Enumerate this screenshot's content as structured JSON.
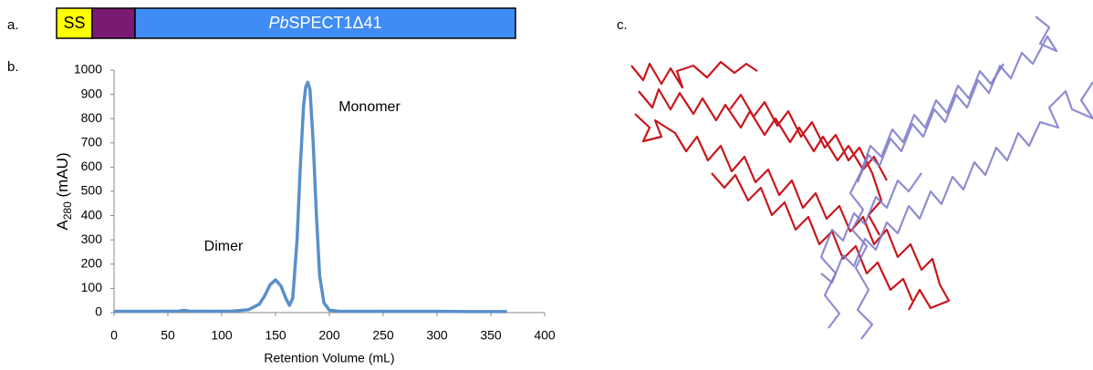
{
  "panel_labels": [
    "a.",
    "b.",
    "c."
  ],
  "domain_diagram": {
    "segments": [
      {
        "label": "SS",
        "color": "#ffff00"
      },
      {
        "color": "#7b1a73"
      },
      {
        "label_italic": "Pb",
        "label": "SPECT1Δ41",
        "color": "#3f8cf5"
      }
    ]
  },
  "chart_data": {
    "type": "line",
    "x_label": "Retention Volume (mL)",
    "y_label": {
      "main": "A",
      "subscript": "280",
      "unit": "(mAU)"
    },
    "x": [
      0,
      20,
      40,
      60,
      65,
      70,
      90,
      110,
      125,
      135,
      140,
      145,
      150,
      155,
      160,
      163,
      166,
      170,
      173,
      176,
      178,
      180,
      182,
      185,
      188,
      191,
      195,
      200,
      210,
      250,
      300,
      340,
      365
    ],
    "series": [
      {
        "color": "#5a8fc8",
        "values": [
          5,
          5,
          5,
          6,
          9,
          6,
          5,
          6,
          12,
          35,
          70,
          115,
          135,
          110,
          55,
          30,
          60,
          300,
          600,
          850,
          930,
          950,
          920,
          700,
          400,
          150,
          40,
          10,
          5,
          5,
          5,
          4,
          4
        ]
      }
    ],
    "annotations": [
      "Dimer",
      "Monomer"
    ],
    "xlim": [
      0,
      400
    ],
    "xticks": [
      0,
      50,
      100,
      150,
      200,
      250,
      300,
      350,
      400
    ],
    "ylim": [
      0,
      1000
    ],
    "yticks": [
      0,
      100,
      200,
      300,
      400,
      500,
      600,
      700,
      800,
      900,
      1000
    ],
    "grid": false
  }
}
